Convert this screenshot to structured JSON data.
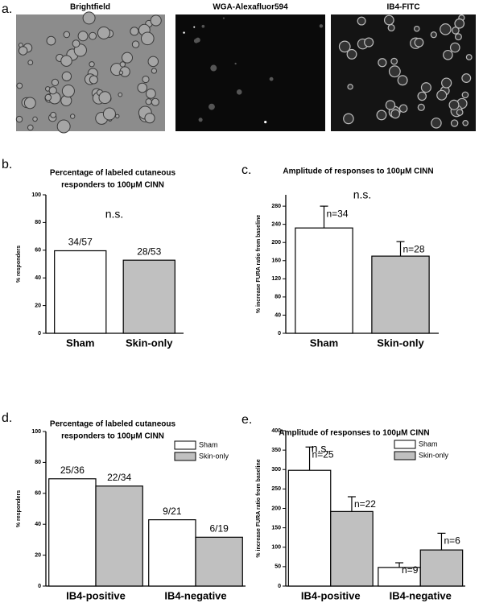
{
  "panel_a": {
    "label": "a.",
    "titles": [
      "Brightfield",
      "WGA-Alexafluor594",
      "IB4-FITC"
    ]
  },
  "chart_data": [
    {
      "type": "bar",
      "panel_label": "b.",
      "title": [
        "Percentage of labeled cutaneous",
        "responders to 100μM CINN"
      ],
      "annotation": "n.s.",
      "ylabel": "% responders",
      "categories": [
        "Sham",
        "Skin-only"
      ],
      "values": [
        59.6,
        52.8
      ],
      "colors": [
        "#ffffff",
        "#c0c0c0"
      ],
      "bar_labels": [
        "34/57",
        "28/53"
      ],
      "ylim": [
        0,
        100
      ],
      "yticks": [
        0,
        20,
        40,
        60,
        80,
        100
      ]
    },
    {
      "type": "bar",
      "panel_label": "c.",
      "title": [
        "Amplitude of responses to 100μM CINN"
      ],
      "annotation": "n.s.",
      "ylabel": "% increase FURA ratio from baseline",
      "categories": [
        "Sham",
        "Skin-only"
      ],
      "values": [
        232,
        170
      ],
      "errors": [
        48,
        32
      ],
      "colors": [
        "#ffffff",
        "#c0c0c0"
      ],
      "bar_labels": [
        "n=34",
        "n=28"
      ],
      "ylim": [
        0,
        305
      ],
      "yticks": [
        0,
        40,
        80,
        120,
        160,
        200,
        240,
        280
      ]
    },
    {
      "type": "bar",
      "panel_label": "d.",
      "title": [
        "Percentage of labeled cutaneous",
        "responders to 100μM CINN"
      ],
      "ylabel": "% responders",
      "categories": [
        "IB4-positive",
        "IB4-negative"
      ],
      "legend": "upper right",
      "series": [
        {
          "name": "Sham",
          "color": "#ffffff",
          "values": [
            69.4,
            42.9
          ],
          "bar_labels": [
            "25/36",
            "9/21"
          ]
        },
        {
          "name": "Skin-only",
          "color": "#c0c0c0",
          "values": [
            64.7,
            31.6
          ],
          "bar_labels": [
            "22/34",
            "6/19"
          ]
        }
      ],
      "ylim": [
        0,
        100
      ],
      "yticks": [
        0,
        20,
        40,
        60,
        80,
        100
      ]
    },
    {
      "type": "bar",
      "panel_label": "e.",
      "title": [
        "Amplitude of responses to 100μM CINN"
      ],
      "annotation": "n.s.",
      "ylabel": "% increase FURA ratio from baseline",
      "categories": [
        "IB4-positive",
        "IB4-negative"
      ],
      "legend": "upper right",
      "series": [
        {
          "name": "Sham",
          "color": "#ffffff",
          "values": [
            298,
            48
          ],
          "errors": [
            60,
            12
          ],
          "bar_labels": [
            "n=25",
            "n=9"
          ]
        },
        {
          "name": "Skin-only",
          "color": "#c0c0c0",
          "values": [
            192,
            93
          ],
          "errors": [
            38,
            43
          ],
          "bar_labels": [
            "n=22",
            "n=6"
          ]
        }
      ],
      "ylim": [
        0,
        400
      ],
      "yticks": [
        0,
        50,
        100,
        150,
        200,
        250,
        300,
        350,
        400
      ]
    }
  ]
}
